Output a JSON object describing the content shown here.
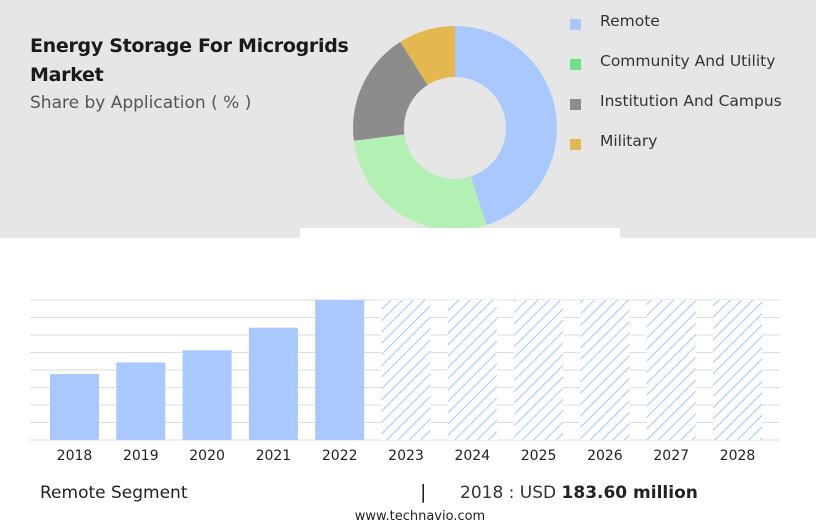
{
  "header": {
    "title": "Energy Storage For Microgrids Market",
    "subtitle": "Share by Application ( % )"
  },
  "chart_data": [
    {
      "type": "pie",
      "style": "donut",
      "categories": [
        "Remote",
        "Community And Utility",
        "Institution And Campus",
        "Military"
      ],
      "values": [
        45,
        28,
        18,
        9
      ],
      "colors": [
        "#a8c8ff",
        "#b3f0b3",
        "#8c8c8c",
        "#e3b84e"
      ],
      "legend_colors": [
        "#a8c8ff",
        "#6fe08a",
        "#8c8c8c",
        "#e3b84e"
      ],
      "legend_placement": "right"
    },
    {
      "type": "bar",
      "categories": [
        "2018",
        "2019",
        "2020",
        "2021",
        "2022",
        "2023",
        "2024",
        "2025",
        "2026",
        "2027",
        "2028"
      ],
      "values": [
        183.6,
        216,
        250,
        313,
        390,
        null,
        null,
        null,
        null,
        null,
        null
      ],
      "forecast": [
        false,
        false,
        false,
        false,
        false,
        true,
        true,
        true,
        true,
        true,
        true
      ],
      "ylim": [
        0,
        390
      ],
      "grid": true,
      "bar_color": "#a8c8ff",
      "forecast_color": "#a8c8ff"
    }
  ],
  "footer": {
    "segment_label": "Remote Segment",
    "separator": "|",
    "stat_prefix": "2018 : USD",
    "stat_value": "183.60 million",
    "source": "www.technavio.com"
  }
}
